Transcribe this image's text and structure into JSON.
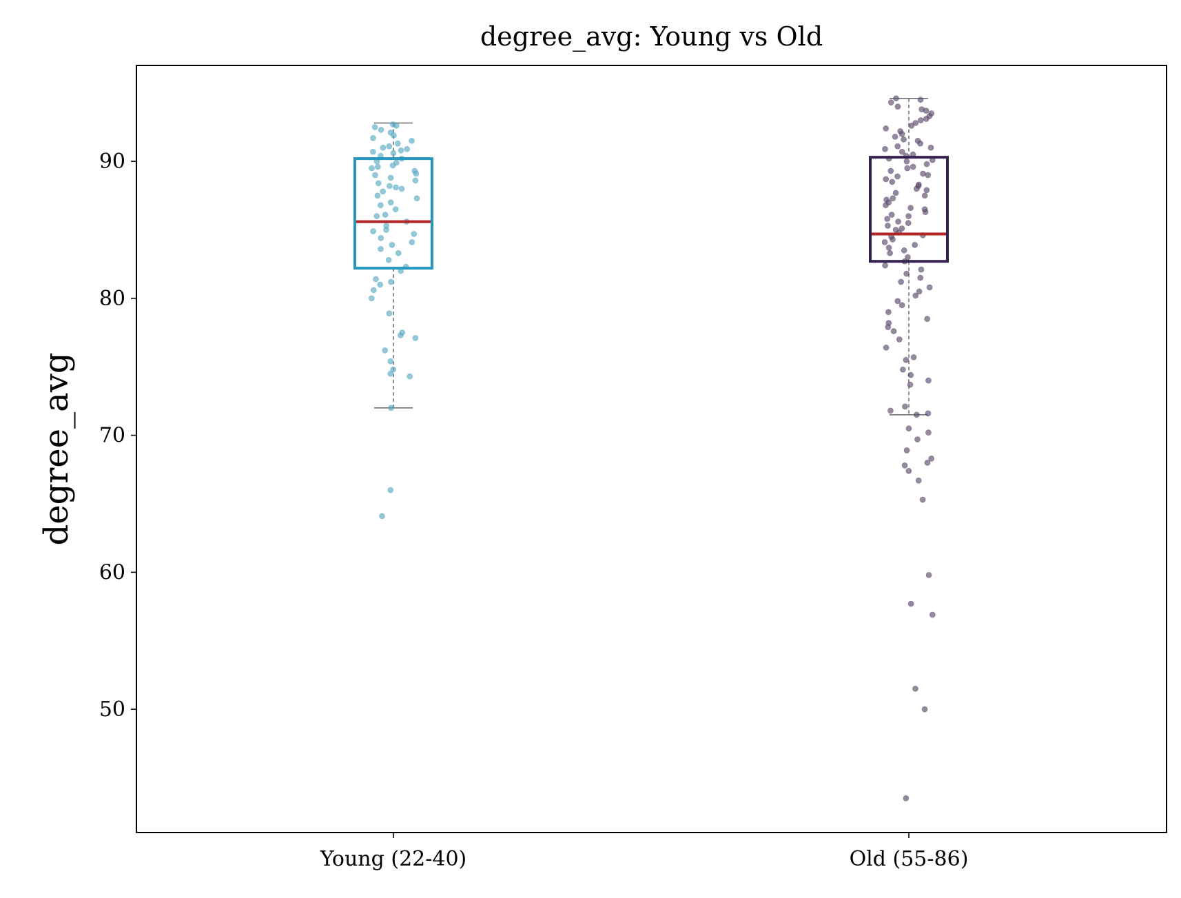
{
  "chart_data": {
    "type": "box",
    "title": "degree_avg: Young vs Old",
    "xlabel": "",
    "ylabel": "degree_avg",
    "ylim": [
      41,
      97
    ],
    "yticks": [
      50,
      60,
      70,
      80,
      90
    ],
    "grid": false,
    "categories": [
      "Young (22-40)",
      "Old (55-86)"
    ],
    "colors": {
      "young_box": "#2596be",
      "young_points": "#5aaac3",
      "old_box": "#35214f",
      "old_points": "#5a4a6a",
      "median": "#b22222",
      "whisker": "#666666"
    },
    "boxes": [
      {
        "name": "Young (22-40)",
        "q1": 82.2,
        "median": 85.6,
        "q3": 90.2,
        "whisker_low": 72.0,
        "whisker_high": 92.8,
        "points": [
          92.7,
          92.6,
          92.5,
          92.3,
          92.1,
          91.9,
          91.7,
          91.5,
          91.3,
          91.1,
          91.0,
          90.9,
          90.8,
          90.7,
          90.6,
          90.4,
          90.2,
          90.0,
          89.9,
          89.7,
          89.6,
          89.5,
          89.3,
          89.1,
          89.0,
          88.8,
          88.6,
          88.4,
          88.2,
          88.1,
          88.0,
          87.8,
          87.5,
          87.3,
          87.0,
          86.8,
          86.5,
          86.1,
          86.0,
          85.6,
          85.3,
          85.0,
          84.9,
          84.7,
          84.4,
          84.1,
          83.9,
          83.6,
          83.3,
          82.8,
          82.3,
          82.0,
          81.4,
          81.0,
          81.2,
          80.6,
          80.0,
          78.9,
          77.5,
          77.3,
          77.1,
          76.2,
          75.4,
          74.8,
          74.5,
          74.3,
          72.0,
          66.0,
          64.1
        ]
      },
      {
        "name": "Old (55-86)",
        "q1": 82.7,
        "median": 84.7,
        "q3": 90.3,
        "whisker_low": 71.5,
        "whisker_high": 94.6,
        "points": [
          94.6,
          94.5,
          94.3,
          94.0,
          93.8,
          93.7,
          93.5,
          93.3,
          93.1,
          93.0,
          92.8,
          92.6,
          92.4,
          92.2,
          92.0,
          91.8,
          91.6,
          91.5,
          91.3,
          91.1,
          91.0,
          90.9,
          90.7,
          90.5,
          90.4,
          90.2,
          90.1,
          90.0,
          89.8,
          89.6,
          89.5,
          89.3,
          89.1,
          89.0,
          88.9,
          88.7,
          88.5,
          88.3,
          88.2,
          88.0,
          87.9,
          87.7,
          87.5,
          87.3,
          87.2,
          87.0,
          86.8,
          86.6,
          86.5,
          86.3,
          86.1,
          86.0,
          85.8,
          85.6,
          85.5,
          85.3,
          85.1,
          85.0,
          84.8,
          84.6,
          84.5,
          84.3,
          84.1,
          83.9,
          83.7,
          83.5,
          83.3,
          83.0,
          82.7,
          82.4,
          82.1,
          81.8,
          81.5,
          81.2,
          80.8,
          80.5,
          80.2,
          79.8,
          79.5,
          79.0,
          78.5,
          78.2,
          77.9,
          77.6,
          77.0,
          76.4,
          75.7,
          75.5,
          74.8,
          74.4,
          74.0,
          73.7,
          72.1,
          71.8,
          71.6,
          71.5,
          70.5,
          70.2,
          69.7,
          68.9,
          68.3,
          68.0,
          67.8,
          67.4,
          66.7,
          65.3,
          59.8,
          57.7,
          56.9,
          51.5,
          50.0,
          43.5
        ]
      }
    ]
  }
}
